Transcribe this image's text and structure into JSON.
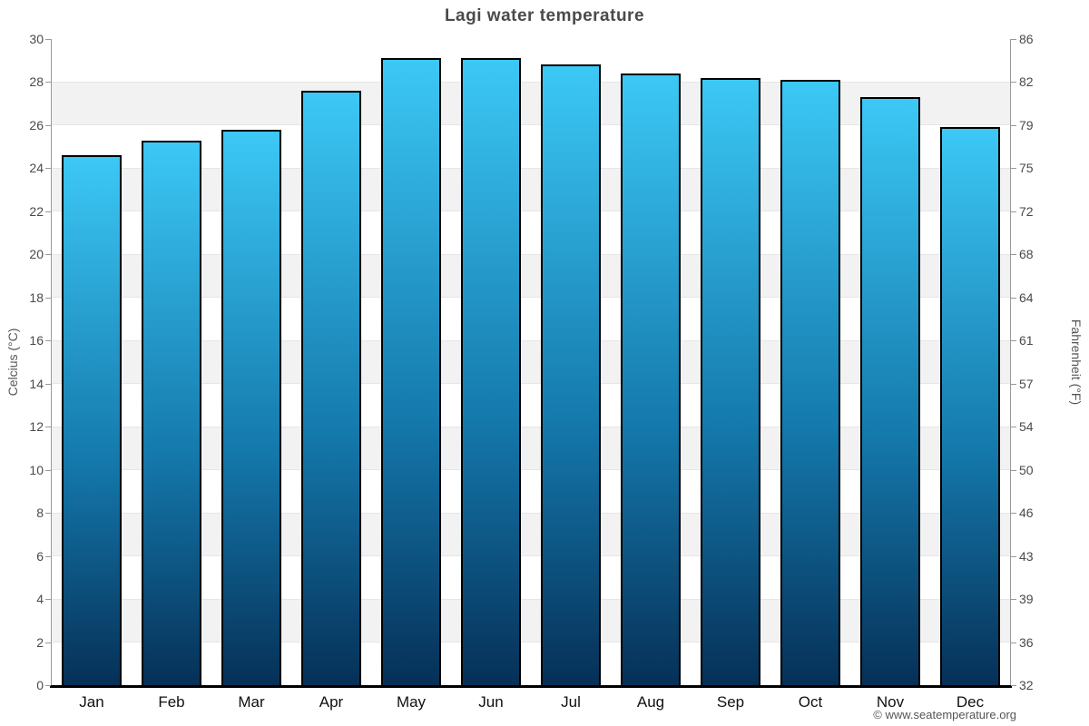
{
  "chart_data": {
    "type": "bar",
    "title": "Lagi water temperature",
    "categories": [
      "Jan",
      "Feb",
      "Mar",
      "Apr",
      "May",
      "Jun",
      "Jul",
      "Aug",
      "Sep",
      "Oct",
      "Nov",
      "Dec"
    ],
    "values": [
      24.6,
      25.3,
      25.8,
      27.6,
      29.1,
      29.1,
      28.8,
      28.4,
      28.2,
      28.1,
      27.3,
      25.9
    ],
    "ylabel_left": "Celcius (°C)",
    "ylabel_right": "Fahrenheit (°F)",
    "ylim": [
      0,
      30
    ],
    "ytick_step": 2,
    "yticks_left": [
      30,
      28,
      26,
      24,
      22,
      20,
      18,
      16,
      14,
      12,
      10,
      8,
      6,
      4,
      2,
      0
    ],
    "yticks_right": [
      86,
      82,
      79,
      75,
      72,
      68,
      64,
      61,
      57,
      54,
      50,
      46,
      43,
      39,
      36,
      32
    ],
    "legend": "none",
    "grid": "horizontal alternating 2-degree bands",
    "footer": "© www.seatemperature.org",
    "colors": {
      "bar_gradient_top": "#3cc8f5",
      "bar_gradient_mid": "#1478ab",
      "bar_gradient_bottom": "#063057",
      "bar_border": "#000000",
      "band_gray": "#f2f2f2",
      "band_white": "#ffffff",
      "gridline": "#e6e6e6",
      "axis_line": "#999999",
      "baseline": "#000000",
      "title_text": "#4a4a4a",
      "tick_text": "#4a4a4a",
      "month_text": "#111111",
      "footer_text": "#555555"
    }
  }
}
